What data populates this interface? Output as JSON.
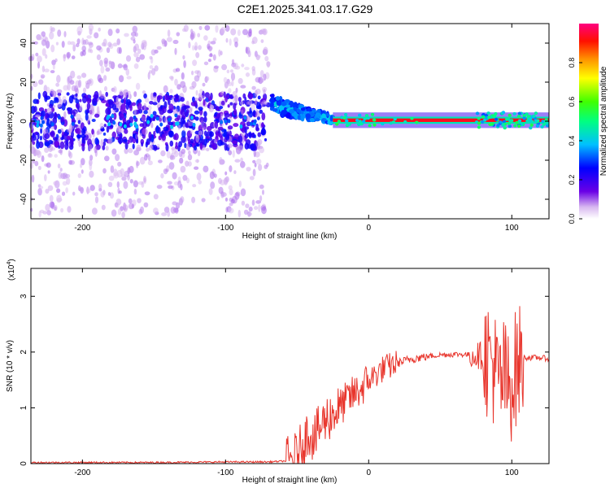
{
  "title": "C2E1.2025.341.03.17.G29",
  "colors": {
    "background": "#ffffff",
    "snr_line": "#e8352c",
    "axis": "#000000"
  },
  "chart_data": [
    {
      "type": "heatmap",
      "title": "C2E1.2025.341.03.17.G29",
      "xlabel": "Height of straight line (km)",
      "ylabel": "Frequency (Hz)",
      "xlim": [
        -236,
        126
      ],
      "ylim": [
        -50,
        50
      ],
      "xticks": [
        -200,
        -100,
        0,
        100
      ],
      "xtick_labels": [
        "-200",
        "-100",
        "0",
        "100"
      ],
      "yticks": [
        -40,
        -20,
        0,
        20,
        40
      ],
      "ytick_labels": [
        "-40",
        "-20",
        "0",
        "20",
        "40"
      ],
      "features": [
        {
          "x_range": [
            -236,
            -70
          ],
          "description": "noisy scatter",
          "frequency_spread_hz": [
            -48,
            48
          ],
          "amplitude": [
            0.05,
            0.3
          ]
        },
        {
          "x_range": [
            -68,
            -25
          ],
          "description": "bending signal",
          "frequency_start_hz": 10,
          "frequency_end_hz": 1,
          "amplitude": [
            0.3,
            0.6
          ]
        },
        {
          "x_range": [
            -25,
            126
          ],
          "description": "steady tone",
          "frequency_hz": 0.5,
          "amplitude": [
            0.9,
            1.0
          ]
        }
      ],
      "colorbar": {
        "label": "Normalized spectral amplitude",
        "range": [
          0,
          1
        ],
        "ticks": [
          0.0,
          0.2,
          0.4,
          0.6,
          0.8
        ],
        "tick_labels": [
          "0.0",
          "0.2",
          "0.4",
          "0.6",
          "0.8"
        ]
      }
    },
    {
      "type": "line",
      "xlabel": "Height of straight line (km)",
      "ylabel": "SNR (10 * v/v)",
      "yscale_label": "(x10",
      "yscale_exponent": "4",
      "yscale_close": ")",
      "xlim": [
        -236,
        126
      ],
      "ylim": [
        0,
        3.5
      ],
      "xticks": [
        -200,
        -100,
        0,
        100
      ],
      "xtick_labels": [
        "-200",
        "-100",
        "0",
        "100"
      ],
      "yticks": [
        0,
        1,
        2,
        3
      ],
      "ytick_labels": [
        "0",
        "1",
        "2",
        "3"
      ],
      "series": [
        {
          "name": "SNR",
          "x": [
            -236,
            -200,
            -150,
            -100,
            -70,
            -55,
            -50,
            -45,
            -42,
            -38,
            -35,
            -30,
            -25,
            -20,
            -15,
            -10,
            -5,
            0,
            5,
            10,
            20,
            30,
            40,
            50,
            60,
            65,
            70,
            75,
            80,
            85,
            88,
            90,
            92,
            95,
            97,
            100,
            103,
            105,
            108,
            110,
            115,
            120,
            126
          ],
          "y": [
            0.02,
            0.02,
            0.02,
            0.03,
            0.03,
            0.05,
            0.15,
            0.4,
            0.6,
            0.45,
            0.6,
            0.8,
            0.9,
            1.0,
            1.15,
            1.25,
            1.35,
            1.5,
            1.6,
            1.7,
            1.8,
            1.88,
            1.92,
            1.95,
            1.96,
            1.96,
            1.95,
            1.95,
            1.93,
            1.9,
            1.7,
            1.5,
            1.4,
            1.6,
            1.3,
            1.5,
            1.7,
            1.8,
            1.9,
            1.9,
            1.9,
            1.9,
            1.88
          ]
        }
      ]
    }
  ]
}
